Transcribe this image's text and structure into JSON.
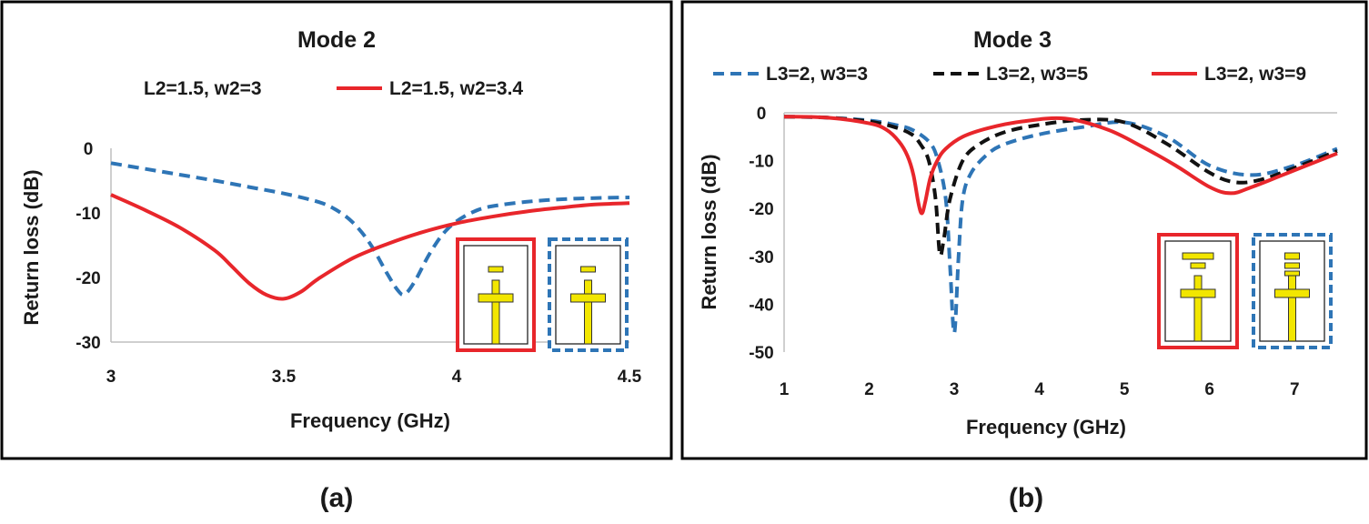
{
  "chart_data": [
    {
      "type": "line",
      "panel_label": "(a)",
      "title": "Mode 2",
      "xlabel": "Frequency (GHz)",
      "ylabel": "Return loss (dB)",
      "xlim": [
        3,
        4.5
      ],
      "ylim": [
        -30,
        0
      ],
      "xticks": [
        "3",
        "3.5",
        "4",
        "4.5"
      ],
      "yticks": [
        "0",
        "-10",
        "-20",
        "-30"
      ],
      "grid": false,
      "legend_position": "top",
      "series": [
        {
          "name": "L2=1.5, w2=3",
          "color": "#2e75b6",
          "style": "dashed",
          "x": [
            3.0,
            3.1,
            3.2,
            3.3,
            3.4,
            3.5,
            3.6,
            3.65,
            3.7,
            3.75,
            3.8,
            3.83,
            3.85,
            3.88,
            3.92,
            3.96,
            4.0,
            4.05,
            4.1,
            4.2,
            4.3,
            4.4,
            4.5
          ],
          "y": [
            -2.3,
            -3.2,
            -4.1,
            -5.0,
            -6.0,
            -7.0,
            -8.3,
            -9.5,
            -11.5,
            -14.8,
            -19.5,
            -22.0,
            -22.6,
            -20.5,
            -16.5,
            -13.3,
            -11.3,
            -9.8,
            -9.0,
            -8.3,
            -7.9,
            -7.7,
            -7.6
          ]
        },
        {
          "name": "L2=1.5, w2=3.4",
          "color": "#e8262b",
          "style": "solid",
          "x": [
            3.0,
            3.1,
            3.2,
            3.3,
            3.35,
            3.4,
            3.45,
            3.5,
            3.55,
            3.6,
            3.7,
            3.8,
            3.9,
            4.0,
            4.1,
            4.2,
            4.3,
            4.4,
            4.5
          ],
          "y": [
            -7.2,
            -9.6,
            -12.3,
            -15.8,
            -18.3,
            -20.9,
            -22.7,
            -23.3,
            -22.2,
            -20.2,
            -17.0,
            -14.8,
            -13.0,
            -11.6,
            -10.6,
            -9.8,
            -9.2,
            -8.7,
            -8.5
          ]
        }
      ],
      "insets": [
        {
          "border": "solid",
          "color": "#e8262b"
        },
        {
          "border": "dashed",
          "color": "#2e75b6"
        }
      ]
    },
    {
      "type": "line",
      "panel_label": "(b)",
      "title": "Mode 3",
      "xlabel": "Frequency (GHz)",
      "ylabel": "Return loss (dB)",
      "xlim": [
        1,
        7.5
      ],
      "ylim": [
        -50,
        0
      ],
      "xticks": [
        "1",
        "2",
        "3",
        "4",
        "5",
        "6",
        "7"
      ],
      "yticks": [
        "0",
        "-10",
        "-20",
        "-30",
        "-40",
        "-50"
      ],
      "grid": false,
      "legend_position": "top",
      "series": [
        {
          "name": "L3=2, w3=3",
          "color": "#2e75b6",
          "style": "dashed",
          "x": [
            1.0,
            1.5,
            2.0,
            2.3,
            2.5,
            2.7,
            2.8,
            2.9,
            2.95,
            3.0,
            3.05,
            3.1,
            3.2,
            3.4,
            3.6,
            4.0,
            4.5,
            5.0,
            5.5,
            6.0,
            6.5,
            7.0,
            7.5
          ],
          "y": [
            -0.8,
            -1.0,
            -1.6,
            -2.5,
            -3.5,
            -6.0,
            -9.5,
            -18.0,
            -32.0,
            -46.0,
            -30.0,
            -18.0,
            -12.5,
            -8.5,
            -6.5,
            -4.5,
            -3.0,
            -2.0,
            -5.0,
            -11.0,
            -13.0,
            -11.0,
            -7.5
          ]
        },
        {
          "name": "L3=2, w3=5",
          "color": "#111111",
          "style": "dashed",
          "x": [
            1.0,
            1.5,
            2.0,
            2.3,
            2.5,
            2.6,
            2.7,
            2.78,
            2.83,
            2.88,
            2.95,
            3.1,
            3.3,
            3.6,
            4.0,
            4.5,
            5.0,
            5.5,
            6.0,
            6.3,
            6.6,
            7.0,
            7.5
          ],
          "y": [
            -0.8,
            -1.0,
            -1.8,
            -3.0,
            -4.5,
            -6.5,
            -10.0,
            -18.0,
            -29.5,
            -26.0,
            -18.0,
            -10.0,
            -6.5,
            -4.0,
            -2.5,
            -1.5,
            -2.0,
            -6.5,
            -12.5,
            -14.5,
            -14.0,
            -11.5,
            -8.0
          ]
        },
        {
          "name": "L3=2, w3=9",
          "color": "#e8262b",
          "style": "solid",
          "x": [
            1.0,
            1.5,
            2.0,
            2.2,
            2.35,
            2.45,
            2.52,
            2.58,
            2.62,
            2.66,
            2.72,
            2.8,
            2.9,
            3.1,
            3.4,
            3.8,
            4.3,
            4.8,
            5.2,
            5.6,
            6.0,
            6.25,
            6.5,
            7.0,
            7.5
          ],
          "y": [
            -0.8,
            -1.0,
            -2.2,
            -3.5,
            -6.0,
            -9.0,
            -13.0,
            -19.0,
            -21.0,
            -18.5,
            -13.5,
            -10.0,
            -7.5,
            -5.0,
            -3.2,
            -1.8,
            -1.2,
            -3.5,
            -7.0,
            -11.0,
            -15.5,
            -16.8,
            -15.5,
            -12.0,
            -8.5
          ]
        }
      ],
      "insets": [
        {
          "border": "solid",
          "color": "#e8262b"
        },
        {
          "border": "dashed",
          "color": "#2e75b6"
        }
      ]
    }
  ]
}
